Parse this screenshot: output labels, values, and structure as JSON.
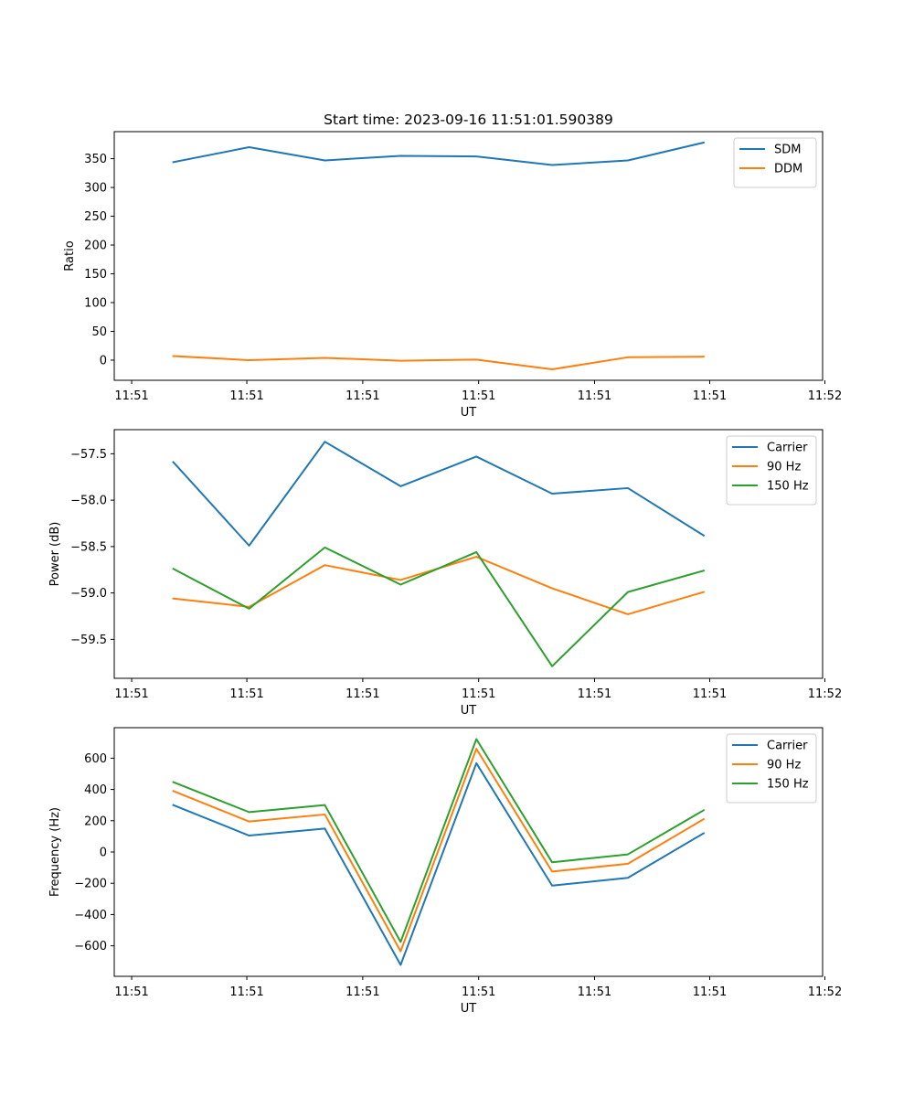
{
  "title": "Start time: 2023-09-16 11:51:01.590389",
  "colors": {
    "c0": "#1f77b4",
    "c1": "#ff7f0e",
    "c2": "#2ca02c"
  },
  "chart_data": [
    {
      "type": "line",
      "title": "Start time: 2023-09-16 11:51:01.590389",
      "xlabel": "UT",
      "ylabel": "Ratio",
      "x": [
        1,
        2,
        3,
        4,
        5,
        6,
        7,
        8
      ],
      "xlim": [
        0.22,
        9.57
      ],
      "ylim": [
        -35,
        397
      ],
      "xticks": [
        0.45,
        1.97,
        3.5,
        5.03,
        6.56,
        8.08,
        9.6
      ],
      "xtick_labels": [
        "11:51",
        "11:51",
        "11:51",
        "11:51",
        "11:51",
        "11:51",
        "11:52"
      ],
      "yticks": [
        0,
        50,
        100,
        150,
        200,
        250,
        300,
        350
      ],
      "ytick_labels": [
        "0",
        "50",
        "100",
        "150",
        "200",
        "250",
        "300",
        "350"
      ],
      "legend": "upper right",
      "series": [
        {
          "name": "SDM",
          "color": "#1f77b4",
          "values": [
            344,
            370,
            347,
            355,
            354,
            339,
            347,
            378
          ]
        },
        {
          "name": "DDM",
          "color": "#ff7f0e",
          "values": [
            7,
            0,
            4,
            -1,
            1,
            -16,
            5,
            6
          ]
        }
      ]
    },
    {
      "type": "line",
      "title": "",
      "xlabel": "UT",
      "ylabel": "Power (dB)",
      "x": [
        1,
        2,
        3,
        4,
        5,
        6,
        7,
        8
      ],
      "xlim": [
        0.22,
        9.57
      ],
      "ylim": [
        -59.92,
        -57.24
      ],
      "xticks": [
        0.45,
        1.97,
        3.5,
        5.03,
        6.56,
        8.08,
        9.6
      ],
      "xtick_labels": [
        "11:51",
        "11:51",
        "11:51",
        "11:51",
        "11:51",
        "11:51",
        "11:52"
      ],
      "yticks": [
        -57.5,
        -58.0,
        -58.5,
        -59.0,
        -59.5
      ],
      "ytick_labels": [
        "−57.5",
        "−58.0",
        "−58.5",
        "−59.0",
        "−59.5"
      ],
      "legend": "upper right",
      "series": [
        {
          "name": "Carrier",
          "color": "#1f77b4",
          "values": [
            -57.59,
            -58.49,
            -57.37,
            -57.85,
            -57.53,
            -57.93,
            -57.87,
            -58.38
          ]
        },
        {
          "name": "90 Hz",
          "color": "#ff7f0e",
          "values": [
            -59.06,
            -59.15,
            -58.7,
            -58.86,
            -58.61,
            -58.95,
            -59.23,
            -58.99
          ]
        },
        {
          "name": "150 Hz",
          "color": "#2ca02c",
          "values": [
            -58.74,
            -59.17,
            -58.51,
            -58.91,
            -58.56,
            -59.79,
            -58.99,
            -58.76
          ]
        }
      ]
    },
    {
      "type": "line",
      "title": "",
      "xlabel": "UT",
      "ylabel": "Frequency (Hz)",
      "x": [
        1,
        2,
        3,
        4,
        5,
        6,
        7,
        8
      ],
      "xlim": [
        0.22,
        9.57
      ],
      "ylim": [
        -795,
        795
      ],
      "xticks": [
        0.45,
        1.97,
        3.5,
        5.03,
        6.56,
        8.08,
        9.6
      ],
      "xtick_labels": [
        "11:51",
        "11:51",
        "11:51",
        "11:51",
        "11:51",
        "11:51",
        "11:52"
      ],
      "yticks": [
        600,
        400,
        200,
        0,
        -200,
        -400,
        -600
      ],
      "ytick_labels": [
        "600",
        "400",
        "200",
        "0",
        "−200",
        "−400",
        "−600"
      ],
      "legend": "upper right",
      "series": [
        {
          "name": "Carrier",
          "color": "#1f77b4",
          "values": [
            300,
            105,
            150,
            -722,
            568,
            -215,
            -165,
            120
          ]
        },
        {
          "name": "90 Hz",
          "color": "#ff7f0e",
          "values": [
            390,
            195,
            240,
            -635,
            660,
            -125,
            -75,
            210
          ]
        },
        {
          "name": "150 Hz",
          "color": "#2ca02c",
          "values": [
            447,
            255,
            300,
            -575,
            722,
            -66,
            -15,
            267
          ]
        }
      ]
    }
  ]
}
